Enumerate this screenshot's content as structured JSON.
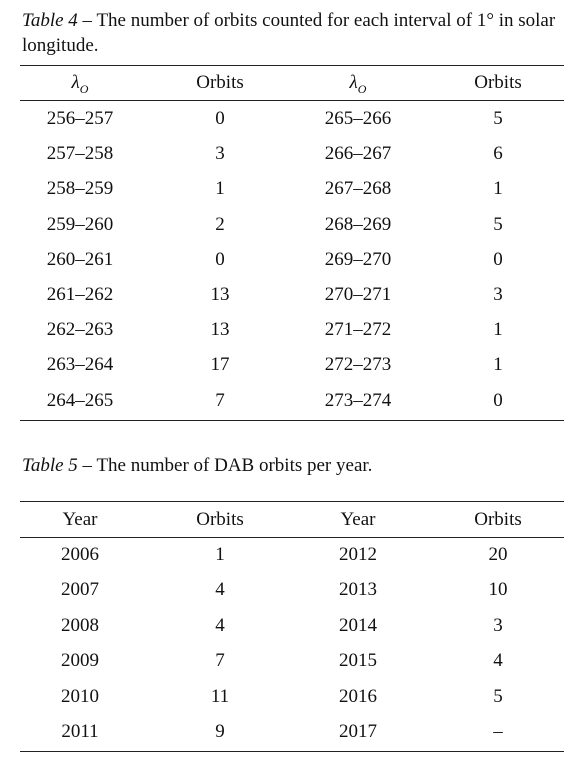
{
  "table4": {
    "caption_label": "Table 4",
    "caption_text": " – The number of orbits counted for each interval of 1° in solar longitude.",
    "header": [
      {
        "text": "λ",
        "sub": "O"
      },
      {
        "text": "Orbits"
      },
      {
        "text": "λ",
        "sub": "O"
      },
      {
        "text": "Orbits"
      }
    ],
    "rows": [
      [
        "256–257",
        "0",
        "265–266",
        "5"
      ],
      [
        "257–258",
        "3",
        "266–267",
        "6"
      ],
      [
        "258–259",
        "1",
        "267–268",
        "1"
      ],
      [
        "259–260",
        "2",
        "268–269",
        "5"
      ],
      [
        "260–261",
        "0",
        "269–270",
        "0"
      ],
      [
        "261–262",
        "13",
        "270–271",
        "3"
      ],
      [
        "262–263",
        "13",
        "271–272",
        "1"
      ],
      [
        "263–264",
        "17",
        "272–273",
        "1"
      ],
      [
        "264–265",
        "7",
        "273–274",
        "0"
      ]
    ]
  },
  "table5": {
    "caption_label": "Table 5",
    "caption_text": " – The number of DAB orbits per year.",
    "header": [
      {
        "text": "Year"
      },
      {
        "text": "Orbits"
      },
      {
        "text": "Year"
      },
      {
        "text": "Orbits"
      }
    ],
    "rows": [
      [
        "2006",
        "1",
        "2012",
        "20"
      ],
      [
        "2007",
        "4",
        "2013",
        "10"
      ],
      [
        "2008",
        "4",
        "2014",
        "3"
      ],
      [
        "2009",
        "7",
        "2015",
        "4"
      ],
      [
        "2010",
        "11",
        "2016",
        "5"
      ],
      [
        "2011",
        "9",
        "2017",
        "–"
      ]
    ]
  }
}
